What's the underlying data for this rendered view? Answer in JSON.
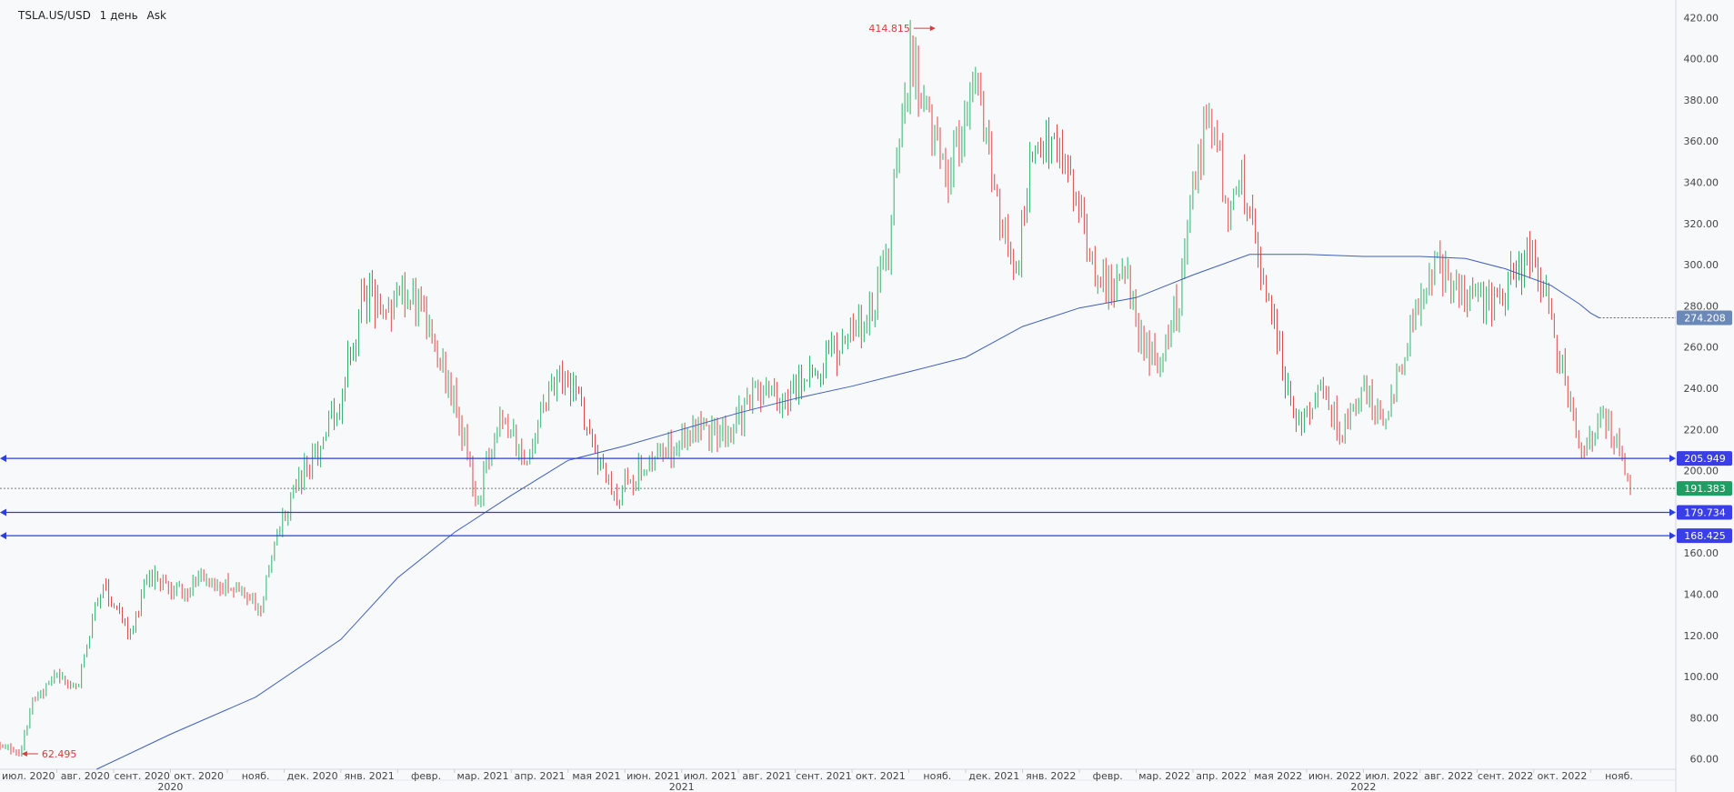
{
  "header": {
    "symbol": "TSLA.US/USD",
    "interval": "1 день",
    "price_type": "Ask"
  },
  "colors": {
    "background": "#f8f9fb",
    "up": "#2fb36b",
    "down": "#e0484a",
    "moving_average": "#3d5fb8",
    "level_line": "#2b3fe0",
    "level_badge": "#3a3ee6",
    "ma_badge": "#6b89b8",
    "current_badge": "#1f9d62",
    "extreme_label": "#d93a3a",
    "axis_text": "#444444"
  },
  "chart_data": {
    "type": "candlestick",
    "ylim": [
      55,
      425
    ],
    "grid": false,
    "y_ticks": [
      60,
      80,
      100,
      120,
      140,
      160,
      180,
      200,
      220,
      240,
      260,
      280,
      300,
      320,
      340,
      360,
      380,
      400,
      420
    ],
    "y_tick_labels": [
      "60.00",
      "80.00",
      "100.00",
      "120.00",
      "140.00",
      "160.00",
      "180.00",
      "200.00",
      "220.00",
      "240.00",
      "260.00",
      "280.00",
      "300.00",
      "320.00",
      "340.00",
      "360.00",
      "380.00",
      "400.00",
      "420.00"
    ],
    "month_labels": [
      "июл. 2020",
      "авг. 2020",
      "сент. 2020",
      "окт. 2020",
      "нояб.",
      "дек. 2020",
      "янв. 2021",
      "февр.",
      "мар. 2021",
      "апр. 2021",
      "мая 2021",
      "июн. 2021",
      "июл. 2021",
      "авг. 2021",
      "сент. 2021",
      "окт. 2021",
      "нояб.",
      "дек. 2021",
      "янв. 2022",
      "февр.",
      "мар. 2022",
      "апр. 2022",
      "мая 2022",
      "июн. 2022",
      "июл. 2022",
      "авг. 2022",
      "сент. 2022",
      "окт. 2022",
      "нояб."
    ],
    "month_positions": [
      0.5,
      1.5,
      2.5,
      3.5,
      4.5,
      5.5,
      6.5,
      7.5,
      8.5,
      9.5,
      10.5,
      11.5,
      12.5,
      13.5,
      14.5,
      15.5,
      16.5,
      17.5,
      18.5,
      19.5,
      20.5,
      21.5,
      22.5,
      23.5,
      24.5,
      25.5,
      26.5,
      27.5,
      28.5
    ],
    "year_labels": [
      "2020",
      "2021",
      "2022"
    ],
    "year_positions": [
      3,
      12,
      24
    ],
    "anchors": [
      [
        0,
        68
      ],
      [
        0.35,
        62.5
      ],
      [
        0.6,
        90
      ],
      [
        1.0,
        100
      ],
      [
        1.35,
        95
      ],
      [
        1.8,
        145
      ],
      [
        2.3,
        120
      ],
      [
        2.6,
        148
      ],
      [
        3.2,
        140
      ],
      [
        3.6,
        150
      ],
      [
        4.2,
        140
      ],
      [
        4.6,
        135
      ],
      [
        5.0,
        180
      ],
      [
        5.5,
        205
      ],
      [
        6.0,
        235
      ],
      [
        6.4,
        285
      ],
      [
        6.8,
        280
      ],
      [
        7.3,
        285
      ],
      [
        7.8,
        250
      ],
      [
        8.2,
        215
      ],
      [
        8.4,
        185
      ],
      [
        8.8,
        228
      ],
      [
        9.3,
        205
      ],
      [
        9.6,
        230
      ],
      [
        9.8,
        250
      ],
      [
        10.2,
        235
      ],
      [
        10.6,
        200
      ],
      [
        10.9,
        188
      ],
      [
        11.4,
        205
      ],
      [
        11.8,
        210
      ],
      [
        12.3,
        220
      ],
      [
        12.8,
        218
      ],
      [
        13.3,
        238
      ],
      [
        13.7,
        232
      ],
      [
        14.2,
        248
      ],
      [
        14.7,
        258
      ],
      [
        15.2,
        270
      ],
      [
        15.6,
        300
      ],
      [
        16.0,
        400
      ],
      [
        16.3,
        380
      ],
      [
        16.7,
        345
      ],
      [
        17.2,
        385
      ],
      [
        17.6,
        320
      ],
      [
        17.9,
        300
      ],
      [
        18.2,
        365
      ],
      [
        18.6,
        355
      ],
      [
        19.0,
        325
      ],
      [
        19.3,
        290
      ],
      [
        19.8,
        295
      ],
      [
        20.1,
        265
      ],
      [
        20.4,
        250
      ],
      [
        20.8,
        290
      ],
      [
        21.0,
        340
      ],
      [
        21.3,
        375
      ],
      [
        21.6,
        330
      ],
      [
        21.9,
        340
      ],
      [
        22.2,
        295
      ],
      [
        22.5,
        265
      ],
      [
        22.8,
        218
      ],
      [
        23.2,
        240
      ],
      [
        23.6,
        222
      ],
      [
        24.0,
        238
      ],
      [
        24.4,
        225
      ],
      [
        24.8,
        265
      ],
      [
        25.2,
        300
      ],
      [
        25.5,
        295
      ],
      [
        25.9,
        285
      ],
      [
        26.3,
        280
      ],
      [
        26.6,
        295
      ],
      [
        26.9,
        305
      ],
      [
        27.2,
        285
      ],
      [
        27.5,
        248
      ],
      [
        27.8,
        215
      ],
      [
        28.0,
        215
      ],
      [
        28.3,
        225
      ],
      [
        28.5,
        210
      ],
      [
        28.7,
        191
      ]
    ],
    "moving_average": [
      [
        1.7,
        55
      ],
      [
        3.0,
        72
      ],
      [
        4.5,
        90
      ],
      [
        6.0,
        118
      ],
      [
        7.0,
        148
      ],
      [
        8.0,
        170
      ],
      [
        9.0,
        188
      ],
      [
        10.0,
        205
      ],
      [
        11.0,
        212
      ],
      [
        12.0,
        220
      ],
      [
        13.0,
        228
      ],
      [
        14.0,
        235
      ],
      [
        15.0,
        241
      ],
      [
        16.0,
        248
      ],
      [
        17.0,
        255
      ],
      [
        18.0,
        270
      ],
      [
        19.0,
        279
      ],
      [
        20.0,
        284
      ],
      [
        21.0,
        295
      ],
      [
        22.0,
        305
      ],
      [
        23.0,
        305
      ],
      [
        24.0,
        304
      ],
      [
        25.0,
        304
      ],
      [
        25.8,
        303
      ],
      [
        26.5,
        298
      ],
      [
        27.3,
        290
      ],
      [
        27.8,
        281
      ],
      [
        28.0,
        276.5
      ],
      [
        28.15,
        274.2
      ]
    ],
    "horizontal_levels": [
      205.949,
      179.734,
      168.425
    ],
    "level_labels": [
      "205.949",
      "179.734",
      "168.425"
    ],
    "current_price": 191.383,
    "current_price_label": "191.383",
    "ma_value": 274.208,
    "ma_value_label": "274.208",
    "high": {
      "value": 414.815,
      "label": "414.815",
      "x": 16.5
    },
    "low": {
      "value": 62.495,
      "label": "62.495",
      "x": 0.35
    }
  }
}
